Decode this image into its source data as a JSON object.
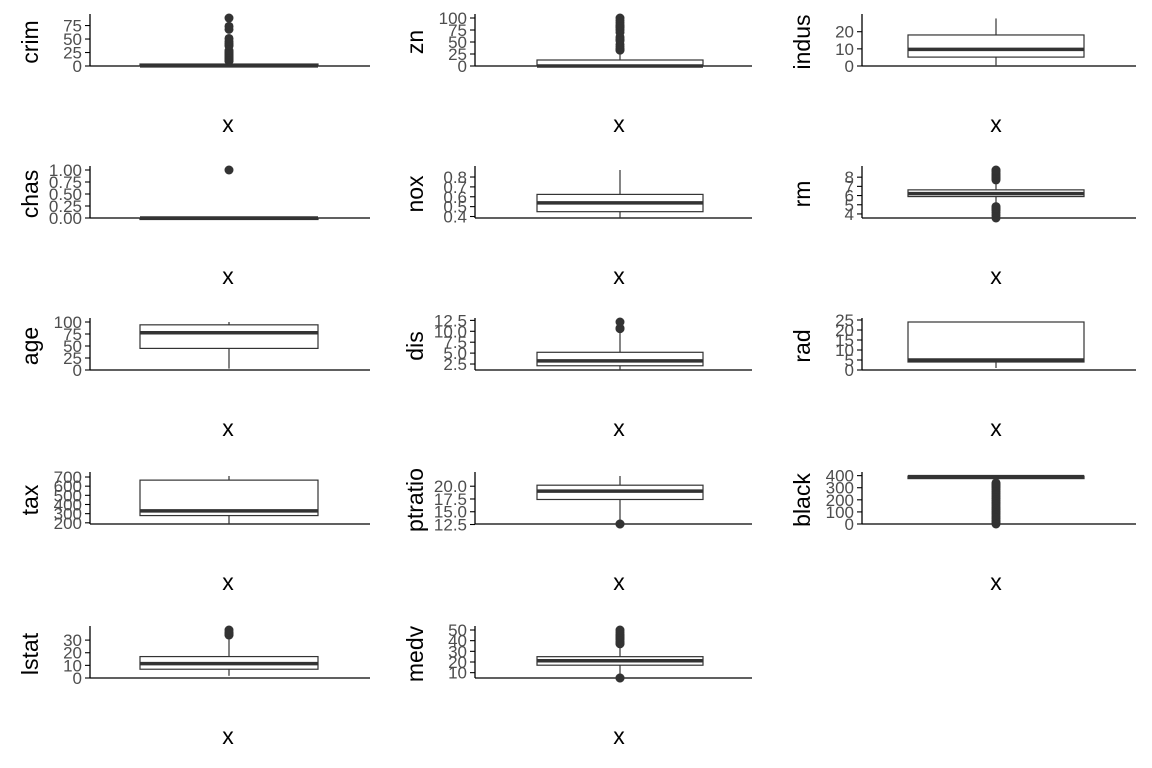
{
  "chart_data": [
    {
      "type": "boxplot",
      "ylabel": "crim",
      "xlabel": "x",
      "ylim": [
        0,
        89
      ],
      "yticks": [
        0,
        25,
        50,
        75
      ],
      "ytick_labels": [
        "0",
        "25",
        "50",
        "75"
      ],
      "box": {
        "min": 0.006,
        "q1": 0.08,
        "median": 0.26,
        "q3": 3.68,
        "max": 8.98
      },
      "outliers": [
        9.2,
        9.97,
        10.1,
        10.8,
        11.1,
        11.6,
        12.0,
        12.8,
        13.5,
        14.3,
        15.0,
        15.9,
        16.8,
        17.9,
        18.5,
        19.6,
        20.1,
        22.0,
        23.6,
        24.8,
        25.9,
        28.7,
        37.7,
        38.4,
        41.5,
        45.7,
        51.1,
        67.9,
        73.5,
        88.98
      ]
    },
    {
      "type": "boxplot",
      "ylabel": "zn",
      "xlabel": "x",
      "ylim": [
        0,
        100
      ],
      "yticks": [
        0,
        25,
        50,
        75,
        100
      ],
      "ytick_labels": [
        "0",
        "25",
        "50",
        "75",
        "100"
      ],
      "box": {
        "min": 0,
        "q1": 0,
        "median": 0,
        "q3": 12.5,
        "max": 31.25
      },
      "outliers": [
        33,
        34,
        35,
        40,
        45,
        52.5,
        55,
        60,
        70,
        75,
        80,
        82.5,
        85,
        90,
        95,
        100
      ]
    },
    {
      "type": "boxplot",
      "ylabel": "indus",
      "xlabel": "x",
      "ylim": [
        0,
        28
      ],
      "yticks": [
        0,
        10,
        20
      ],
      "ytick_labels": [
        "0",
        "10",
        "20"
      ],
      "box": {
        "min": 0.46,
        "q1": 5.19,
        "median": 9.69,
        "q3": 18.1,
        "max": 27.74
      },
      "outliers": []
    },
    {
      "type": "boxplot",
      "ylabel": "chas",
      "xlabel": "x",
      "ylim": [
        0,
        1
      ],
      "yticks": [
        0,
        0.25,
        0.5,
        0.75,
        1
      ],
      "ytick_labels": [
        "0.00",
        "0.25",
        "0.50",
        "0.75",
        "1.00"
      ],
      "box": {
        "min": 0,
        "q1": 0,
        "median": 0,
        "q3": 0,
        "max": 0
      },
      "outliers": [
        1
      ]
    },
    {
      "type": "boxplot",
      "ylabel": "nox",
      "xlabel": "x",
      "ylim": [
        0.385,
        0.871
      ],
      "yticks": [
        0.4,
        0.5,
        0.6,
        0.7,
        0.8
      ],
      "ytick_labels": [
        "0.4",
        "0.5",
        "0.6",
        "0.7",
        "0.8"
      ],
      "box": {
        "min": 0.385,
        "q1": 0.449,
        "median": 0.538,
        "q3": 0.624,
        "max": 0.871
      },
      "outliers": []
    },
    {
      "type": "boxplot",
      "ylabel": "rm",
      "xlabel": "x",
      "ylim": [
        3.56,
        8.78
      ],
      "yticks": [
        4,
        5,
        6,
        7,
        8
      ],
      "ytick_labels": [
        "4",
        "5",
        "6",
        "7",
        "8"
      ],
      "box": {
        "min": 4.88,
        "q1": 5.89,
        "median": 6.21,
        "q3": 6.62,
        "max": 7.69
      },
      "outliers": [
        3.56,
        3.86,
        4.14,
        4.37,
        4.52,
        4.63,
        4.65,
        4.8,
        7.7,
        7.8,
        7.9,
        8.0,
        8.1,
        8.2,
        8.3,
        8.4,
        8.6,
        8.7,
        8.78
      ]
    },
    {
      "type": "boxplot",
      "ylabel": "age",
      "xlabel": "x",
      "ylim": [
        0,
        100
      ],
      "yticks": [
        0,
        25,
        50,
        75,
        100
      ],
      "ytick_labels": [
        "0",
        "25",
        "50",
        "75",
        "100"
      ],
      "box": {
        "min": 2.9,
        "q1": 45.0,
        "median": 77.5,
        "q3": 94.1,
        "max": 100
      },
      "outliers": []
    },
    {
      "type": "boxplot",
      "ylabel": "dis",
      "xlabel": "x",
      "ylim": [
        1.13,
        12.13
      ],
      "yticks": [
        2.5,
        5.0,
        7.5,
        10.0,
        12.5
      ],
      "ytick_labels": [
        "2.5",
        "5.0",
        "7.5",
        "10.0",
        "12.5"
      ],
      "box": {
        "min": 1.13,
        "q1": 2.1,
        "median": 3.21,
        "q3": 5.19,
        "max": 9.82
      },
      "outliers": [
        10.59,
        10.71,
        12.13
      ]
    },
    {
      "type": "boxplot",
      "ylabel": "rad",
      "xlabel": "x",
      "ylim": [
        0,
        24
      ],
      "yticks": [
        0,
        5,
        10,
        15,
        20,
        25
      ],
      "ytick_labels": [
        "0",
        "5",
        "10",
        "15",
        "20",
        "25"
      ],
      "box": {
        "min": 1,
        "q1": 4,
        "median": 5,
        "q3": 24,
        "max": 24
      },
      "outliers": []
    },
    {
      "type": "boxplot",
      "ylabel": "tax",
      "xlabel": "x",
      "ylim": [
        187,
        711
      ],
      "yticks": [
        200,
        300,
        400,
        500,
        600,
        700
      ],
      "ytick_labels": [
        "200",
        "300",
        "400",
        "500",
        "600",
        "700"
      ],
      "box": {
        "min": 187,
        "q1": 279,
        "median": 330,
        "q3": 666,
        "max": 711
      },
      "outliers": []
    },
    {
      "type": "boxplot",
      "ylabel": "ptratio",
      "xlabel": "x",
      "ylim": [
        12.6,
        22
      ],
      "yticks": [
        12.5,
        15.0,
        17.5,
        20.0
      ],
      "ytick_labels": [
        "12.5",
        "15.0",
        "17.5",
        "20.0"
      ],
      "box": {
        "min": 13.0,
        "q1": 17.4,
        "median": 19.05,
        "q3": 20.2,
        "max": 22.0
      },
      "outliers": [
        12.6,
        12.6
      ]
    },
    {
      "type": "boxplot",
      "ylabel": "black",
      "xlabel": "x",
      "ylim": [
        0,
        397
      ],
      "yticks": [
        0,
        100,
        200,
        300,
        400
      ],
      "ytick_labels": [
        "0",
        "100",
        "200",
        "300",
        "400"
      ],
      "box": {
        "min": 344.9,
        "q1": 375.4,
        "median": 391.4,
        "q3": 396.2,
        "max": 396.9
      },
      "outliers": [
        0.3,
        10,
        20,
        30,
        45,
        60,
        75,
        90,
        105,
        120,
        135,
        150,
        165,
        180,
        195,
        210,
        225,
        240,
        255,
        270,
        285,
        300,
        310,
        320,
        330,
        340
      ]
    },
    {
      "type": "boxplot",
      "ylabel": "lstat",
      "xlabel": "x",
      "ylim": [
        0,
        38
      ],
      "yticks": [
        0,
        10,
        20,
        30
      ],
      "ytick_labels": [
        "0",
        "10",
        "20",
        "30"
      ],
      "box": {
        "min": 1.73,
        "q1": 6.95,
        "median": 11.36,
        "q3": 16.96,
        "max": 31.99
      },
      "outliers": [
        34.0,
        34.4,
        34.8,
        35.0,
        36.0,
        37.97
      ]
    },
    {
      "type": "boxplot",
      "ylabel": "medv",
      "xlabel": "x",
      "ylim": [
        5,
        50
      ],
      "yticks": [
        10,
        20,
        30,
        40,
        50
      ],
      "ytick_labels": [
        "10",
        "20",
        "30",
        "40",
        "50"
      ],
      "box": {
        "min": 5.6,
        "q1": 17.0,
        "median": 21.2,
        "q3": 25.0,
        "max": 36.5
      },
      "outliers": [
        5,
        5,
        37.0,
        37.5,
        38.0,
        39.0,
        41.0,
        42.0,
        43.0,
        44.0,
        45.0,
        46.0,
        48.0,
        50.0
      ]
    }
  ],
  "colors": {
    "box_line": "#333333",
    "median": "#333333",
    "outlier": "#333333",
    "axis": "#000000",
    "tick_label": "#4d4d4d"
  }
}
